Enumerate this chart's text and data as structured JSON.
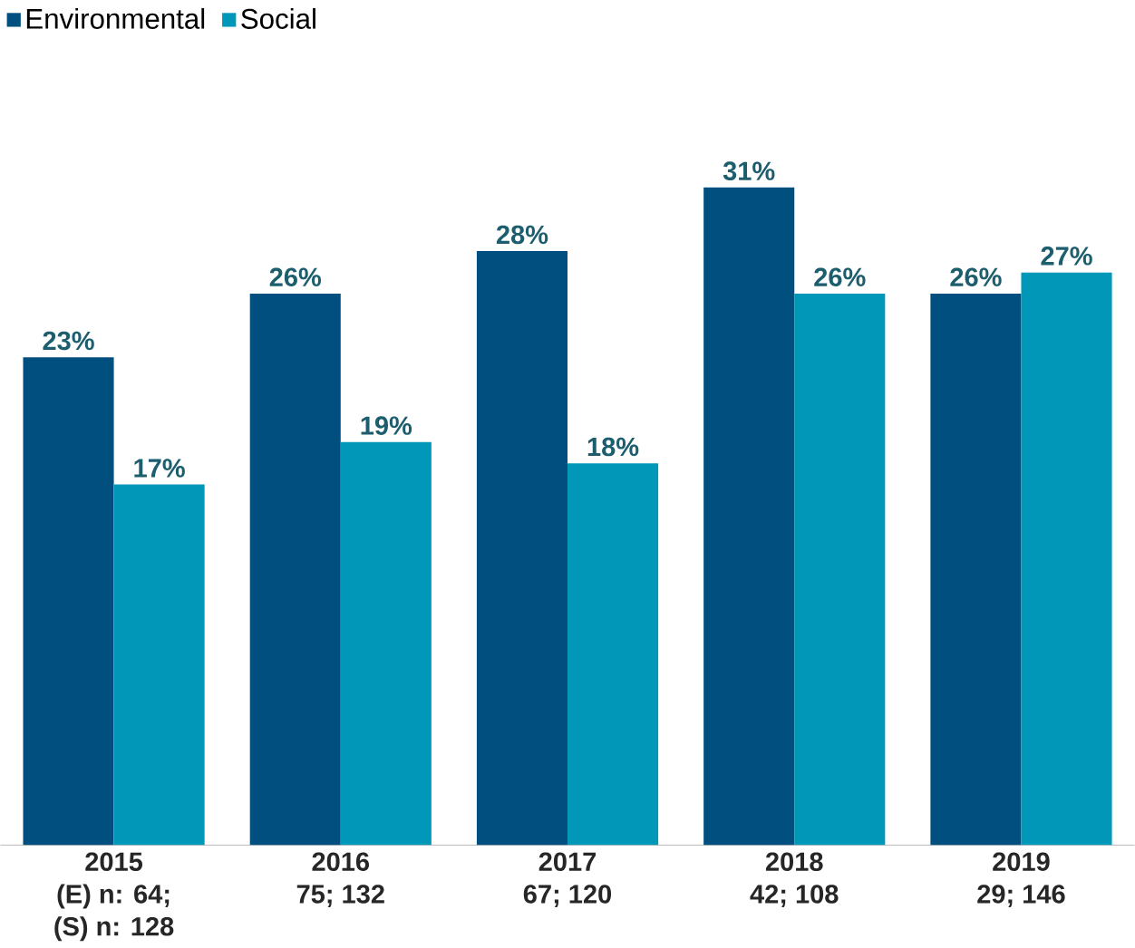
{
  "chart_data": {
    "type": "bar",
    "categories": [
      "2015\n(E) n: 64;\n(S) n: 128",
      "2016\n75; 132",
      "2017\n67; 120",
      "2018\n42; 108",
      "2019\n29; 146"
    ],
    "series": [
      {
        "name": "Environmental",
        "color": "#004f7e",
        "values": [
          23,
          26,
          28,
          31,
          26
        ],
        "value_labels": [
          "23%",
          "26%",
          "28%",
          "31%",
          "26%"
        ]
      },
      {
        "name": "Social",
        "color": "#0097b9",
        "values": [
          17,
          19,
          18,
          26,
          27
        ],
        "value_labels": [
          "17%",
          "19%",
          "18%",
          "26%",
          "27%"
        ]
      }
    ],
    "legend": "top left"
  }
}
